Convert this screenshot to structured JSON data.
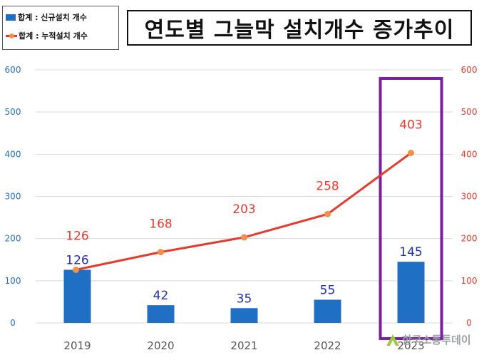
{
  "legend": {
    "bar_label": "합계 : 신규설치 개수",
    "line_label": "합계 : 누적설치 개수"
  },
  "watermark": {
    "text": "한국소통투데이"
  },
  "chart_data": {
    "type": "bar",
    "title": "연도별 그늘막 설치개수 증가추이",
    "categories": [
      "2019",
      "2020",
      "2021",
      "2022",
      "2023"
    ],
    "series": [
      {
        "name": "합계 : 신규설치 개수",
        "type": "bar",
        "axis": "left",
        "values": [
          126,
          42,
          35,
          55,
          145
        ],
        "color": "#1f6fc5"
      },
      {
        "name": "합계 : 누적설치 개수",
        "type": "line",
        "axis": "right",
        "values": [
          126,
          168,
          203,
          258,
          403
        ],
        "color": "#e53a2c",
        "marker_color": "#f0904a"
      }
    ],
    "ylim_left": [
      0,
      600
    ],
    "ylim_right": [
      0,
      600
    ],
    "yticks": [
      0,
      100,
      200,
      300,
      400,
      500,
      600
    ],
    "grid": true,
    "highlight": {
      "category": "2023",
      "color": "#7b1fa2"
    },
    "colors": {
      "bar_label": "#1f2fb0",
      "line_label": "#e53a2c",
      "left_axis": "#1f6fc5",
      "right_axis": "#e53a2c"
    }
  }
}
